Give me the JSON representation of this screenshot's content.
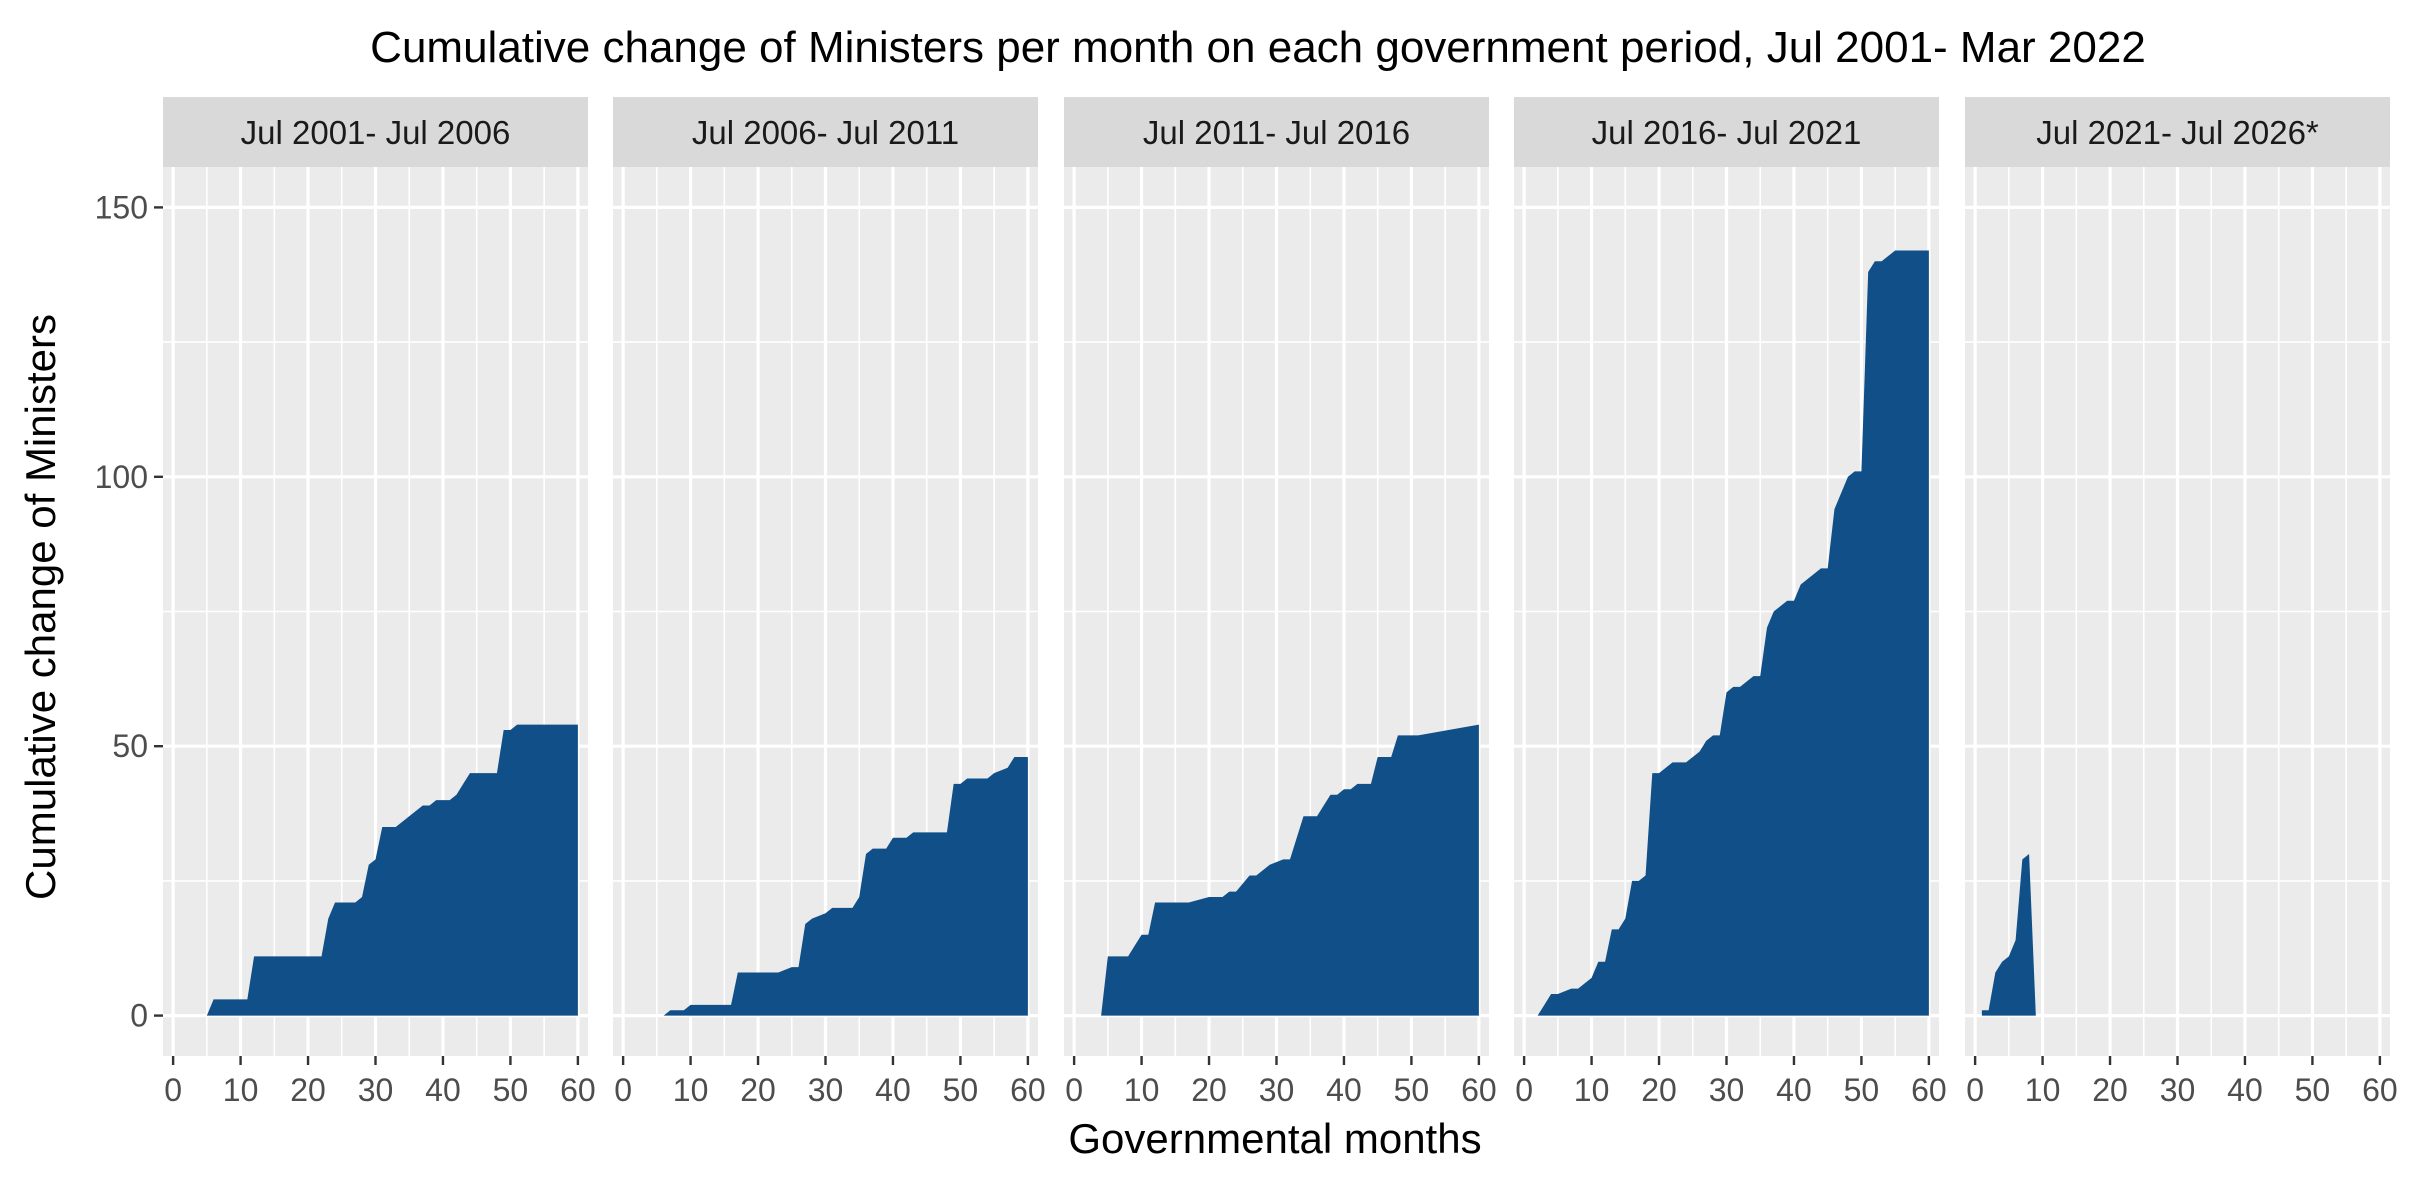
{
  "chart_data": {
    "type": "area",
    "title": "Cumulative change of Ministers per month on each government period, Jul 2001- Mar 2022",
    "xlabel": "Governmental months",
    "ylabel": "Cumulative change of Ministers",
    "xlim": [
      -1.5,
      61.5
    ],
    "ylim": [
      -7.5,
      157.5
    ],
    "x_ticks": [
      0,
      10,
      20,
      30,
      40,
      50,
      60
    ],
    "x_tick_labels": [
      "0",
      "10",
      "20",
      "30",
      "40",
      "50",
      "60"
    ],
    "y_ticks": [
      0,
      50,
      100,
      150
    ],
    "y_tick_labels": [
      "0",
      "50",
      "100",
      "150"
    ],
    "grid": true,
    "fill_color": "#114f88",
    "panel_background": "#ebebeb",
    "strip_background": "#d9d9d9",
    "panels": [
      {
        "label": "Jul 2001- Jul 2006",
        "x": [
          5,
          6,
          11,
          12,
          22,
          23,
          24,
          27,
          28,
          29,
          30,
          31,
          32,
          33,
          34,
          35,
          36,
          37,
          38,
          39,
          40,
          41,
          42,
          43,
          44,
          47,
          48,
          49,
          50,
          51,
          60
        ],
        "y": [
          0,
          3,
          3,
          11,
          11,
          18,
          21,
          21,
          22,
          28,
          29,
          35,
          35,
          35,
          36,
          37,
          38,
          39,
          39,
          40,
          40,
          40,
          41,
          43,
          45,
          45,
          45,
          53,
          53,
          54,
          54
        ]
      },
      {
        "label": "Jul 2006- Jul 2011",
        "x": [
          6,
          7,
          9,
          10,
          16,
          17,
          22,
          23,
          25,
          26,
          27,
          28,
          30,
          31,
          34,
          35,
          36,
          37,
          39,
          40,
          42,
          43,
          48,
          49,
          50,
          51,
          54,
          55,
          57,
          58,
          60
        ],
        "y": [
          0,
          1,
          1,
          2,
          2,
          8,
          8,
          8,
          9,
          9,
          17,
          18,
          19,
          20,
          20,
          22,
          30,
          31,
          31,
          33,
          33,
          34,
          34,
          43,
          43,
          44,
          44,
          45,
          46,
          48,
          48
        ]
      },
      {
        "label": "Jul 2011- Jul 2016",
        "x": [
          4,
          5,
          8,
          9,
          10,
          11,
          12,
          16,
          17,
          20,
          21,
          22,
          23,
          24,
          26,
          27,
          28,
          29,
          31,
          32,
          34,
          35,
          36,
          37,
          38,
          39,
          40,
          41,
          42,
          43,
          44,
          45,
          47,
          48,
          50,
          51,
          60
        ],
        "y": [
          0,
          11,
          11,
          13,
          15,
          15,
          21,
          21,
          21,
          22,
          22,
          22,
          23,
          23,
          26,
          26,
          27,
          28,
          29,
          29,
          37,
          37,
          37,
          39,
          41,
          41,
          42,
          42,
          43,
          43,
          43,
          48,
          48,
          52,
          52,
          52,
          54
        ]
      },
      {
        "label": "Jul 2016- Jul 2021",
        "x": [
          2,
          3,
          4,
          5,
          7,
          8,
          9,
          10,
          11,
          12,
          13,
          14,
          15,
          16,
          17,
          18,
          19,
          20,
          21,
          22,
          23,
          24,
          25,
          26,
          27,
          28,
          29,
          30,
          31,
          32,
          33,
          34,
          35,
          36,
          37,
          38,
          39,
          40,
          41,
          42,
          43,
          44,
          45,
          46,
          47,
          48,
          49,
          50,
          51,
          52,
          53,
          54,
          55,
          56,
          57,
          60
        ],
        "y": [
          0,
          2,
          4,
          4,
          5,
          5,
          6,
          7,
          10,
          10,
          16,
          16,
          18,
          25,
          25,
          26,
          45,
          45,
          46,
          47,
          47,
          47,
          48,
          49,
          51,
          52,
          52,
          60,
          61,
          61,
          62,
          63,
          63,
          72,
          75,
          76,
          77,
          77,
          80,
          81,
          82,
          83,
          83,
          94,
          97,
          100,
          101,
          101,
          138,
          140,
          140,
          141,
          142,
          142,
          142,
          142
        ]
      },
      {
        "label": "Jul 2021- Jul 2026*",
        "x": [
          1,
          2,
          3,
          4,
          5,
          6,
          7,
          8,
          9
        ],
        "y": [
          1,
          1,
          8,
          10,
          11,
          14,
          29,
          30,
          0
        ]
      }
    ]
  }
}
